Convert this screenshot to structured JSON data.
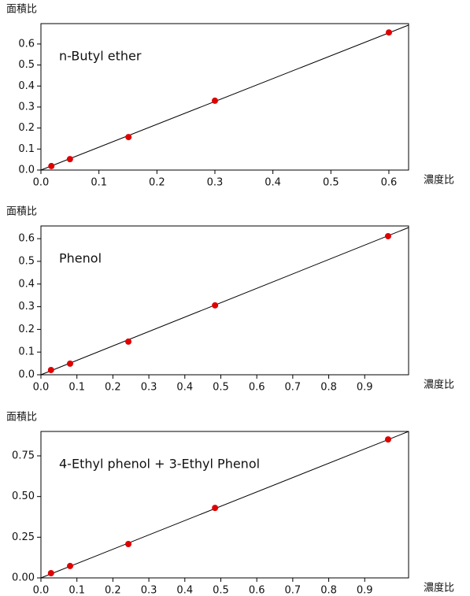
{
  "chart_data": [
    {
      "type": "scatter",
      "ylabel": "面積比",
      "xlabel": "濃度比",
      "annotation": "n-Butyl ether",
      "color": "#e00000",
      "line_color": "#000000",
      "x": [
        0.018,
        0.05,
        0.151,
        0.3,
        0.6
      ],
      "values": [
        0.019,
        0.052,
        0.157,
        0.33,
        0.655
      ],
      "fit": {
        "x": [
          0,
          0.634
        ],
        "values": [
          0,
          0.69
        ]
      },
      "xlim": [
        0,
        0.634
      ],
      "ylim": [
        0,
        0.697
      ],
      "xticks": [
        {
          "value": 0,
          "label": "0.0"
        },
        0.1,
        0.2,
        0.3,
        0.4,
        0.5,
        0.6
      ],
      "yticks": [
        {
          "value": 0,
          "label": "0.0"
        },
        0.1,
        0.2,
        0.3,
        0.4,
        0.5,
        0.6
      ]
    },
    {
      "type": "scatter",
      "ylabel": "面積比",
      "xlabel": "濃度比",
      "annotation": "Phenol",
      "color": "#e00000",
      "line_color": "#000000",
      "x": [
        0.028,
        0.081,
        0.243,
        0.484,
        0.965
      ],
      "values": [
        0.021,
        0.049,
        0.146,
        0.306,
        0.611
      ],
      "fit": {
        "x": [
          0,
          1.022
        ],
        "values": [
          0,
          0.649
        ]
      },
      "xlim": [
        0,
        1.022
      ],
      "ylim": [
        0,
        0.656
      ],
      "xticks": [
        {
          "value": 0,
          "label": "0.0"
        },
        0.1,
        0.2,
        0.3,
        0.4,
        0.5,
        0.6,
        0.7,
        0.8,
        0.9
      ],
      "yticks": [
        {
          "value": 0,
          "label": "0.0"
        },
        0.1,
        0.2,
        0.3,
        0.4,
        0.5,
        0.6
      ]
    },
    {
      "type": "scatter",
      "ylabel": "面積比",
      "xlabel": "濃度比",
      "annotation": "4-Ethyl phenol + 3-Ethyl Phenol",
      "color": "#e00000",
      "line_color": "#000000",
      "x": [
        0.028,
        0.081,
        0.243,
        0.484,
        0.965
      ],
      "values": [
        0.029,
        0.073,
        0.208,
        0.43,
        0.851
      ],
      "fit": {
        "x": [
          0,
          1.022
        ],
        "values": [
          0,
          0.9
        ]
      },
      "xlim": [
        0,
        1.022
      ],
      "ylim": [
        0,
        0.9
      ],
      "xticks": [
        {
          "value": 0,
          "label": "0.0"
        },
        0.1,
        0.2,
        0.3,
        0.4,
        0.5,
        0.6,
        0.7,
        0.8,
        0.9
      ],
      "yticks": [
        {
          "value": 0,
          "label": "0.00"
        },
        0.25,
        {
          "value": 0.5,
          "label": "0.50"
        },
        0.75
      ]
    }
  ]
}
